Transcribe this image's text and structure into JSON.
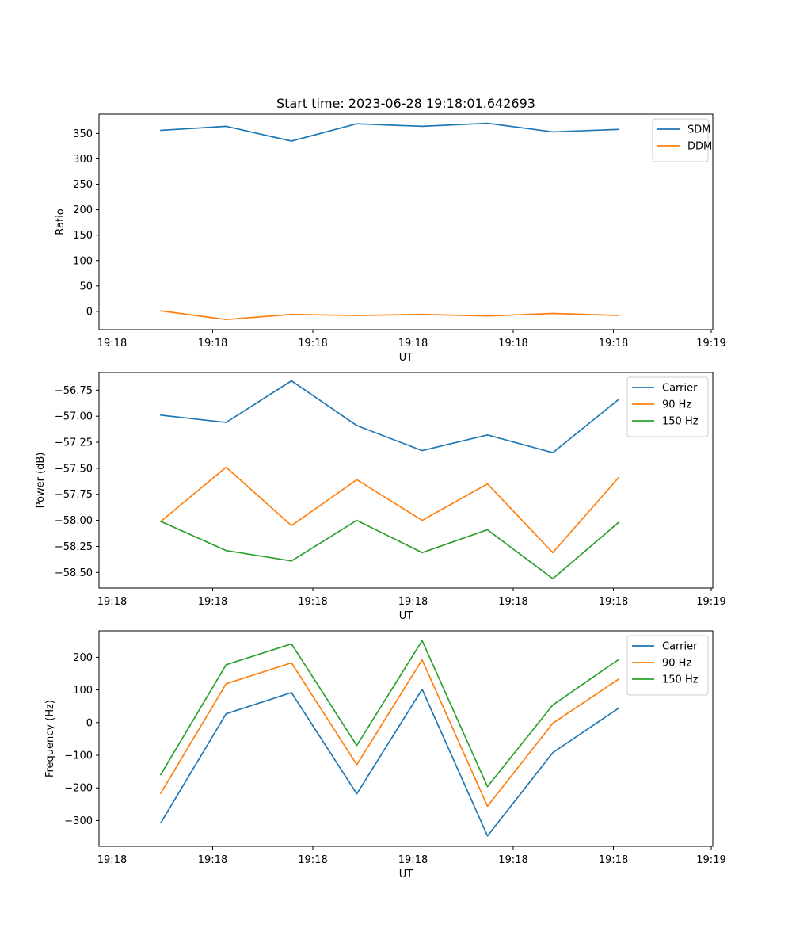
{
  "figure": {
    "title": "Start time: 2023-06-28 19:18:01.642693"
  },
  "chart_data": [
    {
      "type": "line",
      "xlabel": "UT",
      "ylabel": "Ratio",
      "x_tick_labels": [
        "19:18",
        "19:18",
        "19:18",
        "19:18",
        "19:18",
        "19:18",
        "19:19"
      ],
      "y_ticks": [
        0,
        50,
        100,
        150,
        200,
        250,
        300,
        350
      ],
      "ylim": [
        -36,
        388
      ],
      "legend": "top-right",
      "series": [
        {
          "name": "SDM",
          "color": "#1f77b4",
          "values": [
            356,
            364,
            335,
            369,
            364,
            370,
            353,
            358
          ]
        },
        {
          "name": "DDM",
          "color": "#ff7f0e",
          "values": [
            1,
            -16,
            -6,
            -8,
            -6,
            -9,
            -4,
            -8
          ]
        }
      ]
    },
    {
      "type": "line",
      "xlabel": "UT",
      "ylabel": "Power (dB)",
      "x_tick_labels": [
        "19:18",
        "19:18",
        "19:18",
        "19:18",
        "19:18",
        "19:18",
        "19:19"
      ],
      "y_ticks": [
        -58.5,
        -58.25,
        -58.0,
        -57.75,
        -57.5,
        -57.25,
        -57.0,
        -56.75
      ],
      "y_tick_labels": [
        "−58.50",
        "−58.25",
        "−58.00",
        "−57.75",
        "−57.50",
        "−57.25",
        "−57.00",
        "−56.75"
      ],
      "ylim": [
        -58.65,
        -56.58
      ],
      "legend": "top-right",
      "series": [
        {
          "name": "Carrier",
          "color": "#1f77b4",
          "values": [
            -56.99,
            -57.06,
            -56.66,
            -57.09,
            -57.33,
            -57.18,
            -57.35,
            -56.84
          ]
        },
        {
          "name": "90 Hz",
          "color": "#ff7f0e",
          "values": [
            -58.01,
            -57.49,
            -58.05,
            -57.61,
            -58.0,
            -57.65,
            -58.31,
            -57.59
          ]
        },
        {
          "name": "150 Hz",
          "color": "#2ca02c",
          "values": [
            -58.01,
            -58.29,
            -58.39,
            -58.0,
            -58.31,
            -58.09,
            -58.56,
            -58.02
          ]
        }
      ]
    },
    {
      "type": "line",
      "xlabel": "UT",
      "ylabel": "Frequency (Hz)",
      "x_tick_labels": [
        "19:18",
        "19:18",
        "19:18",
        "19:18",
        "19:18",
        "19:18",
        "19:19"
      ],
      "y_ticks": [
        -300,
        -200,
        -100,
        0,
        100,
        200
      ],
      "y_tick_labels": [
        "−300",
        "−200",
        "−100",
        "0",
        "100",
        "200"
      ],
      "ylim": [
        -379,
        281
      ],
      "legend": "top-right",
      "series": [
        {
          "name": "Carrier",
          "color": "#1f77b4",
          "values": [
            -307,
            27,
            92,
            -218,
            102,
            -347,
            -92,
            44
          ]
        },
        {
          "name": "90 Hz",
          "color": "#ff7f0e",
          "values": [
            -216,
            119,
            183,
            -129,
            192,
            -256,
            -2,
            133
          ]
        },
        {
          "name": "150 Hz",
          "color": "#2ca02c",
          "values": [
            -159,
            177,
            241,
            -70,
            251,
            -196,
            54,
            193
          ]
        }
      ]
    }
  ]
}
